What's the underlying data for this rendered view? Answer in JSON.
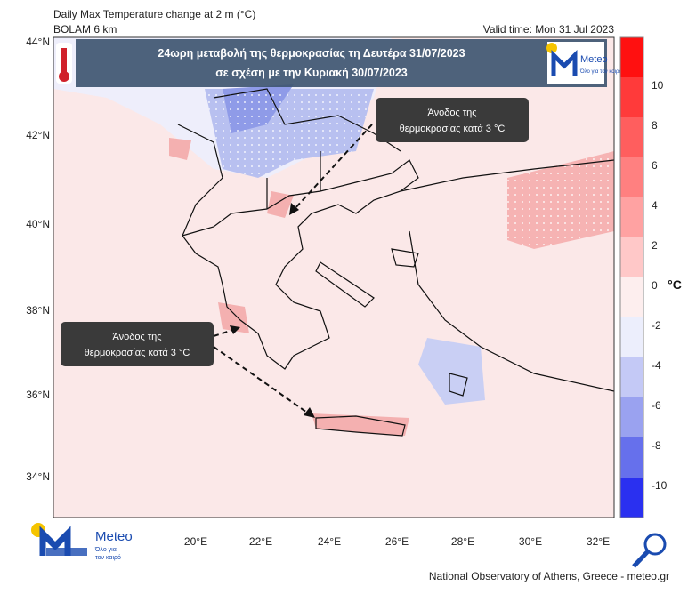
{
  "header": {
    "title": "Daily Max Temperature change at 2 m (°C)",
    "model": "BOLAM 6 km",
    "valid_time": "Valid time: Mon 31 Jul 2023"
  },
  "banner": {
    "line1": "24ωρη μεταβολή  της θερμοκρασίας  τη Δευτέρα 31/07/2023",
    "line2": "σε σχέση με την Κυριακή 30/07/2023",
    "logo": "Meteo",
    "logo_tagline": "Όλο για τον καιρό"
  },
  "annotations": [
    {
      "line1": "Άνοδος της",
      "line2": "θερμοκρασίας κατά 3 °C"
    },
    {
      "line1": "Άνοδος της",
      "line2": "θερμοκρασίας κατά 3 °C"
    }
  ],
  "colorbar": {
    "ticks": [
      10,
      8,
      6,
      4,
      2,
      0,
      -2,
      -4,
      -6,
      -8,
      -10
    ],
    "unit": "°C"
  },
  "lat_labels": [
    "44°N",
    "42°N",
    "40°N",
    "38°N",
    "36°N",
    "34°N"
  ],
  "lon_labels": [
    "20°E",
    "22°E",
    "24°E",
    "26°E",
    "28°E",
    "30°E",
    "32°E"
  ],
  "footer": {
    "logo": "Meteo",
    "logo_tagline_1": "Όλο για",
    "logo_tagline_2": "τον καιρό",
    "credit": "National Observatory of Athens, Greece - meteo.gr"
  }
}
